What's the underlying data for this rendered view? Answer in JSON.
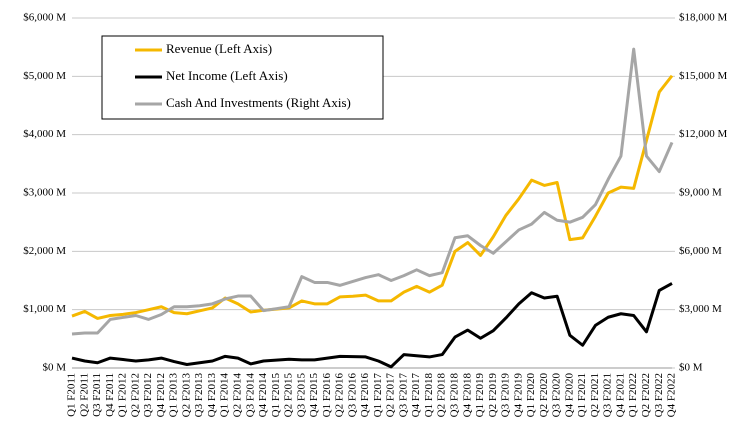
{
  "chart_data": {
    "type": "line",
    "categories": [
      "Q1 F2011",
      "Q2 F2011",
      "Q3 F2011",
      "Q4 F2011",
      "Q1 F2012",
      "Q2 F2012",
      "Q3 F2012",
      "Q4 F2012",
      "Q1 F2013",
      "Q2 F2013",
      "Q3 F2013",
      "Q4 F2013",
      "Q1 F2014",
      "Q2 F2014",
      "Q3 F2014",
      "Q4 F2014",
      "Q1 F2015",
      "Q2 F2015",
      "Q3 F2015",
      "Q4 F2015",
      "Q1 F2016",
      "Q2 F2016",
      "Q3 F2016",
      "Q4 F2016",
      "Q1 F2017",
      "Q2 F2017",
      "Q3 F2017",
      "Q4 F2017",
      "Q1 F2018",
      "Q2 F2018",
      "Q3 F2018",
      "Q4 F2018",
      "Q1 F2019",
      "Q2 F2019",
      "Q3 F2019",
      "Q4 F2019",
      "Q1 F2020",
      "Q2 F2020",
      "Q3 F2020",
      "Q4 F2020",
      "Q1 F2021",
      "Q2 F2021",
      "Q3 F2021",
      "Q4 F2021",
      "Q1 F2022",
      "Q2 F2022",
      "Q3 F2022",
      "Q4 F2022"
    ],
    "series": [
      {
        "name": "Revenue (Left Axis)",
        "color": "#f5b800",
        "values": [
          890,
          970,
          850,
          900,
          920,
          950,
          1000,
          1050,
          950,
          930,
          980,
          1030,
          1200,
          1100,
          960,
          990,
          1010,
          1030,
          1150,
          1100,
          1100,
          1220,
          1230,
          1250,
          1150,
          1150,
          1300,
          1400,
          1300,
          1420,
          2000,
          2150,
          1930,
          2250,
          2620,
          2900,
          3220,
          3130,
          3180,
          2200,
          2230,
          2600,
          3000,
          3100,
          3080,
          3900,
          4730,
          5010
        ]
      },
      {
        "name": "Net Income (Left Axis)",
        "color": "#000000",
        "values": [
          170,
          120,
          90,
          170,
          145,
          120,
          140,
          170,
          110,
          60,
          90,
          120,
          200,
          170,
          70,
          120,
          135,
          150,
          140,
          140,
          170,
          200,
          195,
          190,
          120,
          20,
          230,
          210,
          190,
          230,
          530,
          650,
          510,
          640,
          860,
          1100,
          1290,
          1200,
          1230,
          560,
          390,
          730,
          870,
          930,
          900,
          620,
          1330,
          1450
        ]
      },
      {
        "name": "Cash And Investments (Right Axis)",
        "color": "#a6a6a6",
        "axis": "y2",
        "values": [
          1750,
          1800,
          1800,
          2500,
          2600,
          2700,
          2500,
          2750,
          3150,
          3150,
          3200,
          3300,
          3550,
          3700,
          3700,
          2950,
          3050,
          3150,
          4700,
          4400,
          4400,
          4250,
          4450,
          4650,
          4800,
          4500,
          4750,
          5050,
          4750,
          4900,
          6700,
          6800,
          6300,
          5900,
          6500,
          7100,
          7400,
          8000,
          7600,
          7500,
          7750,
          8400,
          9700,
          10900,
          16400,
          10900,
          10100,
          11600
        ]
      }
    ],
    "ylim": [
      0,
      6000
    ],
    "yticks": [
      {
        "value": 0,
        "label": "$0 M"
      },
      {
        "value": 1000,
        "label": "$1,000 M"
      },
      {
        "value": 2000,
        "label": "$2,000 M"
      },
      {
        "value": 3000,
        "label": "$3,000 M"
      },
      {
        "value": 4000,
        "label": "$4,000 M"
      },
      {
        "value": 5000,
        "label": "$5,000 M"
      },
      {
        "value": 6000,
        "label": "$6,000 M"
      }
    ],
    "y2lim": [
      0,
      18000
    ],
    "y2ticks": [
      {
        "value": 0,
        "label": "$0 M"
      },
      {
        "value": 3000,
        "label": "$3,000 M"
      },
      {
        "value": 6000,
        "label": "$6,000 M"
      },
      {
        "value": 9000,
        "label": "$9,000 M"
      },
      {
        "value": 12000,
        "label": "$12,000 M"
      },
      {
        "value": 15000,
        "label": "$15,000 M"
      },
      {
        "value": 18000,
        "label": "$18,000 M"
      }
    ],
    "grid": true,
    "legend": "upper left"
  }
}
